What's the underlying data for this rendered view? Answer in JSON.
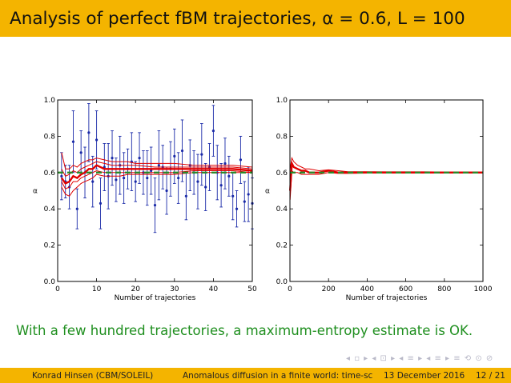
{
  "slide": {
    "title": "Analysis of perfect fBM trajectories, α = 0.6, L = 100",
    "caption": "With a few hundred trajectories, a maximum-entropy estimate is OK.",
    "nav_symbols": "◂ ▫ ▸ ◂ ⊡ ▸ ◂ ≡ ▸ ◂ ≡ ▸   ≡   ⟲ ⊙ ⊘"
  },
  "footer": {
    "author": "Konrad Hinsen  (CBM/SOLEIL)",
    "talk": "Anomalous diffusion in a finite world: time-sc",
    "date": "13 December 2016",
    "page": "12 / 21"
  },
  "colors": {
    "accent": "#f4b400",
    "caption": "#1f8f1f",
    "points": "#1a2aa8",
    "estimate": "#e00000",
    "reference": "#2a8a2a"
  },
  "chart_data": [
    {
      "type": "scatter",
      "xlabel": "Number of trajectories",
      "ylabel": "α",
      "xlim": [
        0,
        50
      ],
      "ylim": [
        0.0,
        1.0
      ],
      "xticks": [
        "0",
        "10",
        "20",
        "30",
        "40",
        "50"
      ],
      "yticks": [
        "0.0",
        "0.2",
        "0.4",
        "0.6",
        "0.8",
        "1.0"
      ],
      "grid": false,
      "reference_value": 0.6,
      "points": [
        {
          "x": 1,
          "y": 0.58,
          "err": 0.13
        },
        {
          "x": 2,
          "y": 0.55,
          "err": 0.09
        },
        {
          "x": 3,
          "y": 0.52,
          "err": 0.12
        },
        {
          "x": 4,
          "y": 0.77,
          "err": 0.17
        },
        {
          "x": 5,
          "y": 0.4,
          "err": 0.11
        },
        {
          "x": 6,
          "y": 0.71,
          "err": 0.12
        },
        {
          "x": 7,
          "y": 0.6,
          "err": 0.14
        },
        {
          "x": 8,
          "y": 0.82,
          "err": 0.16
        },
        {
          "x": 9,
          "y": 0.55,
          "err": 0.14
        },
        {
          "x": 10,
          "y": 0.78,
          "err": 0.16
        },
        {
          "x": 11,
          "y": 0.43,
          "err": 0.14
        },
        {
          "x": 12,
          "y": 0.63,
          "err": 0.13
        },
        {
          "x": 13,
          "y": 0.58,
          "err": 0.18
        },
        {
          "x": 14,
          "y": 0.68,
          "err": 0.15
        },
        {
          "x": 15,
          "y": 0.56,
          "err": 0.12
        },
        {
          "x": 16,
          "y": 0.64,
          "err": 0.16
        },
        {
          "x": 17,
          "y": 0.57,
          "err": 0.14
        },
        {
          "x": 18,
          "y": 0.62,
          "err": 0.11
        },
        {
          "x": 19,
          "y": 0.66,
          "err": 0.16
        },
        {
          "x": 20,
          "y": 0.55,
          "err": 0.11
        },
        {
          "x": 21,
          "y": 0.68,
          "err": 0.14
        },
        {
          "x": 22,
          "y": 0.6,
          "err": 0.12
        },
        {
          "x": 23,
          "y": 0.57,
          "err": 0.15
        },
        {
          "x": 24,
          "y": 0.61,
          "err": 0.13
        },
        {
          "x": 25,
          "y": 0.42,
          "err": 0.15
        },
        {
          "x": 26,
          "y": 0.64,
          "err": 0.19
        },
        {
          "x": 27,
          "y": 0.63,
          "err": 0.12
        },
        {
          "x": 28,
          "y": 0.5,
          "err": 0.13
        },
        {
          "x": 29,
          "y": 0.62,
          "err": 0.15
        },
        {
          "x": 30,
          "y": 0.69,
          "err": 0.15
        },
        {
          "x": 31,
          "y": 0.57,
          "err": 0.14
        },
        {
          "x": 32,
          "y": 0.72,
          "err": 0.17
        },
        {
          "x": 33,
          "y": 0.47,
          "err": 0.13
        },
        {
          "x": 34,
          "y": 0.64,
          "err": 0.14
        },
        {
          "x": 35,
          "y": 0.6,
          "err": 0.12
        },
        {
          "x": 36,
          "y": 0.55,
          "err": 0.15
        },
        {
          "x": 37,
          "y": 0.7,
          "err": 0.17
        },
        {
          "x": 38,
          "y": 0.52,
          "err": 0.13
        },
        {
          "x": 39,
          "y": 0.63,
          "err": 0.13
        },
        {
          "x": 40,
          "y": 0.83,
          "err": 0.14
        },
        {
          "x": 41,
          "y": 0.6,
          "err": 0.15
        },
        {
          "x": 42,
          "y": 0.53,
          "err": 0.12
        },
        {
          "x": 43,
          "y": 0.65,
          "err": 0.14
        },
        {
          "x": 44,
          "y": 0.58,
          "err": 0.11
        },
        {
          "x": 45,
          "y": 0.47,
          "err": 0.13
        },
        {
          "x": 46,
          "y": 0.4,
          "err": 0.1
        },
        {
          "x": 47,
          "y": 0.67,
          "err": 0.13
        },
        {
          "x": 48,
          "y": 0.44,
          "err": 0.11
        },
        {
          "x": 49,
          "y": 0.48,
          "err": 0.15
        },
        {
          "x": 50,
          "y": 0.43,
          "err": 0.14
        }
      ],
      "estimate": {
        "x": [
          1,
          2,
          3,
          4,
          5,
          6,
          7,
          8,
          9,
          10,
          12,
          14,
          16,
          18,
          20,
          25,
          30,
          35,
          40,
          45,
          50
        ],
        "mean": [
          0.57,
          0.54,
          0.55,
          0.58,
          0.57,
          0.59,
          0.6,
          0.62,
          0.62,
          0.64,
          0.62,
          0.62,
          0.62,
          0.62,
          0.62,
          0.62,
          0.62,
          0.62,
          0.62,
          0.62,
          0.61
        ],
        "upper": [
          0.71,
          0.62,
          0.62,
          0.64,
          0.63,
          0.65,
          0.66,
          0.67,
          0.67,
          0.68,
          0.67,
          0.66,
          0.66,
          0.66,
          0.65,
          0.65,
          0.65,
          0.64,
          0.64,
          0.64,
          0.63
        ],
        "lower": [
          0.52,
          0.48,
          0.47,
          0.5,
          0.52,
          0.54,
          0.55,
          0.56,
          0.57,
          0.59,
          0.58,
          0.58,
          0.58,
          0.59,
          0.59,
          0.59,
          0.59,
          0.6,
          0.6,
          0.6,
          0.6
        ],
        "upper_inner": [
          0.62,
          0.58,
          0.59,
          0.61,
          0.6,
          0.62,
          0.63,
          0.64,
          0.65,
          0.66,
          0.65,
          0.64,
          0.64,
          0.64,
          0.64,
          0.63,
          0.63,
          0.63,
          0.63,
          0.63,
          0.62
        ],
        "lower_inner": [
          0.55,
          0.51,
          0.52,
          0.55,
          0.55,
          0.57,
          0.58,
          0.59,
          0.6,
          0.61,
          0.6,
          0.6,
          0.6,
          0.6,
          0.6,
          0.6,
          0.6,
          0.61,
          0.61,
          0.61,
          0.6
        ]
      }
    },
    {
      "type": "line",
      "xlabel": "Number of trajectories",
      "ylabel": "α",
      "xlim": [
        0,
        1000
      ],
      "ylim": [
        0.0,
        1.0
      ],
      "xticks": [
        "0",
        "200",
        "400",
        "600",
        "800",
        "1000"
      ],
      "yticks": [
        "0.0",
        "0.2",
        "0.4",
        "0.6",
        "0.8",
        "1.0"
      ],
      "grid": false,
      "reference_value": 0.6,
      "estimate": {
        "x": [
          1,
          10,
          20,
          40,
          60,
          80,
          100,
          150,
          200,
          250,
          300,
          400,
          500,
          600,
          700,
          800,
          900,
          1000
        ],
        "mean": [
          0.5,
          0.65,
          0.63,
          0.62,
          0.61,
          0.61,
          0.6,
          0.6,
          0.61,
          0.6,
          0.6,
          0.6,
          0.6,
          0.6,
          0.6,
          0.6,
          0.6,
          0.6
        ],
        "upper": [
          0.62,
          0.68,
          0.66,
          0.64,
          0.63,
          0.62,
          0.62,
          0.61,
          0.615,
          0.61,
          0.605,
          0.605,
          0.604,
          0.604,
          0.604,
          0.603,
          0.603,
          0.603
        ],
        "lower": [
          0.45,
          0.61,
          0.6,
          0.6,
          0.59,
          0.59,
          0.59,
          0.59,
          0.6,
          0.595,
          0.595,
          0.597,
          0.598,
          0.598,
          0.598,
          0.599,
          0.599,
          0.599
        ]
      }
    }
  ]
}
